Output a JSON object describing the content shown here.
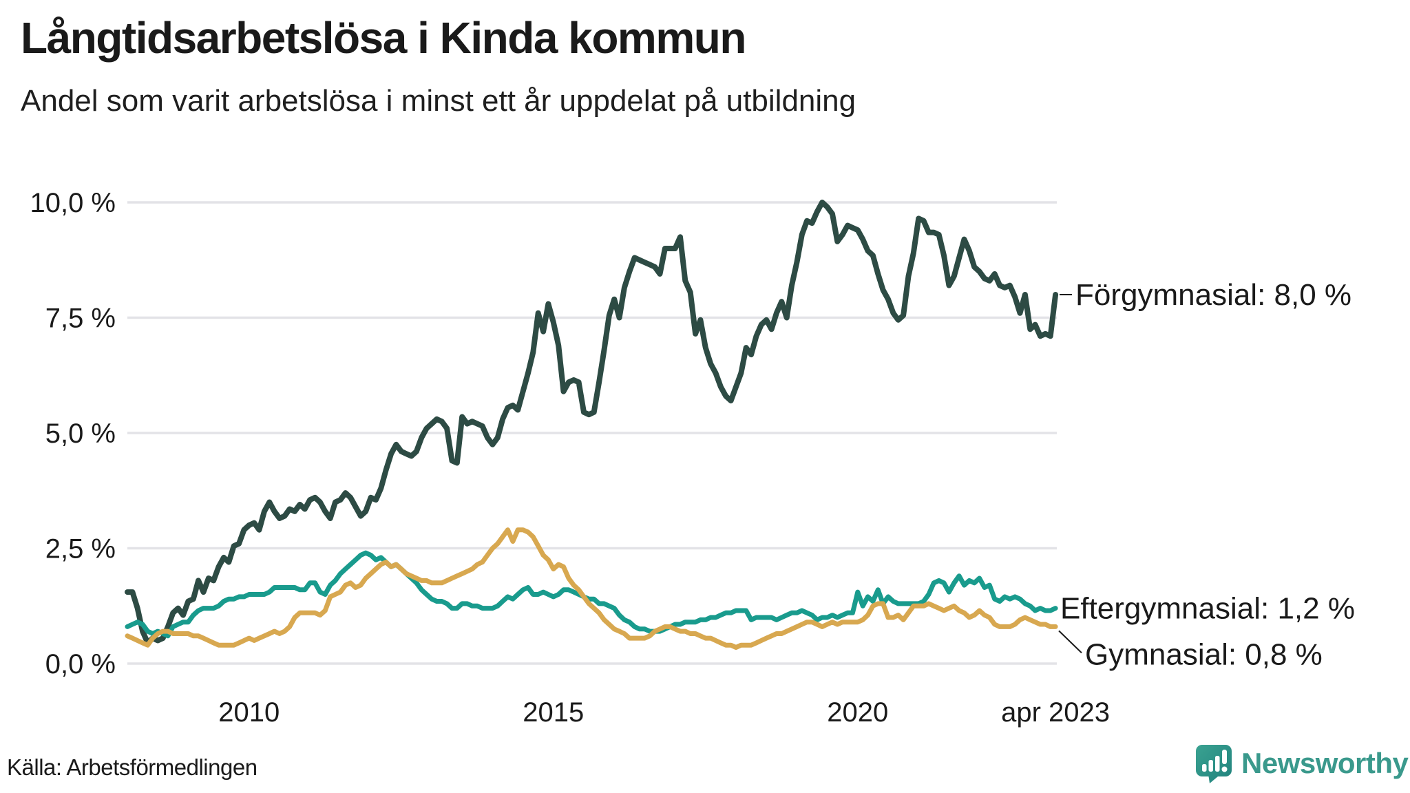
{
  "header": {
    "title": "Långtidsarbetslösa i Kinda kommun",
    "subtitle": "Andel som varit arbetslösa i minst ett år uppdelat på utbildning"
  },
  "footer": {
    "source": "Källa: Arbetsförmedlingen",
    "brand": "Newsworthy"
  },
  "logo": {
    "icon": "bar-chart-speech-bubble-icon",
    "color": "#2f9186"
  },
  "colors": {
    "grid": "#e3e3e7",
    "text": "#1a1a1a",
    "background": "#ffffff"
  },
  "chart_data": {
    "type": "line",
    "title": "Långtidsarbetslösa i Kinda kommun",
    "subtitle": "Andel som varit arbetslösa i minst ett år uppdelat på utbildning",
    "unit": "%",
    "x_frequency": "monthly",
    "x_range": [
      2008.0,
      2023.25
    ],
    "x_axis": {
      "ticks": [
        {
          "label": "2010",
          "year": 2010
        },
        {
          "label": "2015",
          "year": 2015
        },
        {
          "label": "2020",
          "year": 2020
        },
        {
          "label": "apr 2023",
          "year": 2023.25
        }
      ]
    },
    "y_axis": {
      "ylim": [
        0,
        10
      ],
      "grid": true,
      "ticks": [
        {
          "label": "10,0 %",
          "value": 10.0
        },
        {
          "label": "7,5 %",
          "value": 7.5
        },
        {
          "label": "5,0 %",
          "value": 5.0
        },
        {
          "label": "2,5 %",
          "value": 2.5
        },
        {
          "label": "0,0 %",
          "value": 0.0
        }
      ]
    },
    "legend_position": "end-of-line-labels-right",
    "series": [
      {
        "id": "forgymnasial",
        "name": "Förgymnasial",
        "end_label": "Förgymnasial: 8,0 %",
        "last_value": 8.0,
        "color": "#2d4b44",
        "values": [
          1.55,
          1.55,
          1.2,
          0.7,
          0.45,
          0.55,
          0.5,
          0.55,
          0.8,
          1.1,
          1.2,
          1.05,
          1.35,
          1.4,
          1.8,
          1.55,
          1.85,
          1.8,
          2.1,
          2.3,
          2.2,
          2.55,
          2.6,
          2.9,
          3.0,
          3.05,
          2.9,
          3.3,
          3.5,
          3.3,
          3.15,
          3.2,
          3.35,
          3.3,
          3.45,
          3.35,
          3.55,
          3.6,
          3.5,
          3.3,
          3.15,
          3.5,
          3.55,
          3.7,
          3.6,
          3.4,
          3.2,
          3.3,
          3.6,
          3.55,
          3.8,
          4.2,
          4.55,
          4.75,
          4.6,
          4.55,
          4.5,
          4.6,
          4.9,
          5.1,
          5.2,
          5.3,
          5.25,
          5.1,
          4.4,
          4.35,
          5.35,
          5.2,
          5.25,
          5.2,
          5.15,
          4.9,
          4.75,
          4.9,
          5.3,
          5.55,
          5.6,
          5.5,
          5.9,
          6.3,
          6.75,
          7.6,
          7.2,
          7.8,
          7.4,
          6.9,
          5.9,
          6.1,
          6.15,
          6.1,
          5.45,
          5.4,
          5.45,
          6.1,
          6.8,
          7.55,
          7.9,
          7.5,
          8.15,
          8.5,
          8.8,
          8.75,
          8.7,
          8.65,
          8.6,
          8.45,
          9.0,
          9.0,
          9.0,
          9.25,
          8.3,
          8.05,
          7.15,
          7.45,
          6.85,
          6.5,
          6.3,
          6.0,
          5.8,
          5.7,
          6.0,
          6.3,
          6.85,
          6.7,
          7.1,
          7.35,
          7.45,
          7.25,
          7.6,
          7.85,
          7.5,
          8.2,
          8.7,
          9.3,
          9.6,
          9.55,
          9.8,
          10.0,
          9.9,
          9.75,
          9.15,
          9.3,
          9.5,
          9.45,
          9.4,
          9.2,
          8.95,
          8.85,
          8.45,
          8.1,
          7.9,
          7.6,
          7.45,
          7.55,
          8.4,
          8.9,
          9.65,
          9.6,
          9.35,
          9.35,
          9.3,
          8.85,
          8.2,
          8.4,
          8.8,
          9.2,
          8.95,
          8.6,
          8.5,
          8.35,
          8.3,
          8.45,
          8.2,
          8.15,
          8.2,
          7.95,
          7.6,
          8.0,
          7.25,
          7.35,
          7.1,
          7.15,
          7.1,
          8.0
        ]
      },
      {
        "id": "eftergymnasial",
        "name": "Eftergymnasial",
        "end_label": "Eftergymnasial: 1,2 %",
        "last_value": 1.2,
        "color": "#199b8d",
        "values": [
          0.8,
          0.85,
          0.9,
          0.85,
          0.7,
          0.65,
          0.7,
          0.65,
          0.6,
          0.8,
          0.85,
          0.9,
          0.9,
          1.05,
          1.15,
          1.2,
          1.2,
          1.2,
          1.25,
          1.35,
          1.4,
          1.4,
          1.45,
          1.45,
          1.5,
          1.5,
          1.5,
          1.5,
          1.55,
          1.65,
          1.65,
          1.65,
          1.65,
          1.65,
          1.6,
          1.6,
          1.75,
          1.75,
          1.55,
          1.5,
          1.7,
          1.8,
          1.95,
          2.05,
          2.15,
          2.25,
          2.35,
          2.4,
          2.35,
          2.25,
          2.3,
          2.2,
          2.1,
          2.15,
          2.05,
          1.95,
          1.85,
          1.75,
          1.6,
          1.5,
          1.4,
          1.35,
          1.35,
          1.3,
          1.2,
          1.2,
          1.3,
          1.3,
          1.25,
          1.25,
          1.2,
          1.2,
          1.2,
          1.25,
          1.35,
          1.45,
          1.4,
          1.5,
          1.6,
          1.65,
          1.5,
          1.5,
          1.55,
          1.5,
          1.45,
          1.5,
          1.6,
          1.6,
          1.55,
          1.5,
          1.45,
          1.4,
          1.4,
          1.3,
          1.3,
          1.25,
          1.2,
          1.05,
          0.95,
          0.9,
          0.8,
          0.75,
          0.75,
          0.7,
          0.7,
          0.7,
          0.75,
          0.8,
          0.85,
          0.85,
          0.9,
          0.9,
          0.9,
          0.95,
          0.95,
          1.0,
          1.0,
          1.05,
          1.1,
          1.1,
          1.15,
          1.15,
          1.15,
          0.95,
          1.0,
          1.0,
          1.0,
          1.0,
          0.95,
          1.0,
          1.05,
          1.1,
          1.1,
          1.15,
          1.1,
          1.05,
          0.95,
          1.0,
          1.0,
          1.05,
          1.0,
          1.05,
          1.1,
          1.1,
          1.55,
          1.25,
          1.45,
          1.35,
          1.6,
          1.3,
          1.45,
          1.35,
          1.3,
          1.3,
          1.3,
          1.3,
          1.3,
          1.35,
          1.5,
          1.75,
          1.8,
          1.75,
          1.55,
          1.75,
          1.9,
          1.7,
          1.8,
          1.75,
          1.85,
          1.65,
          1.7,
          1.4,
          1.35,
          1.45,
          1.4,
          1.45,
          1.4,
          1.3,
          1.25,
          1.15,
          1.2,
          1.15,
          1.15,
          1.2
        ]
      },
      {
        "id": "gymnasial",
        "name": "Gymnasial",
        "end_label": "Gymnasial: 0,8 %",
        "last_value": 0.8,
        "color": "#d8a850",
        "values": [
          0.6,
          0.55,
          0.5,
          0.45,
          0.4,
          0.55,
          0.65,
          0.7,
          0.7,
          0.65,
          0.65,
          0.65,
          0.65,
          0.6,
          0.6,
          0.55,
          0.5,
          0.45,
          0.4,
          0.4,
          0.4,
          0.4,
          0.45,
          0.5,
          0.55,
          0.5,
          0.55,
          0.6,
          0.65,
          0.7,
          0.65,
          0.7,
          0.8,
          1.0,
          1.1,
          1.1,
          1.1,
          1.1,
          1.05,
          1.15,
          1.45,
          1.5,
          1.55,
          1.7,
          1.75,
          1.65,
          1.7,
          1.85,
          1.95,
          2.05,
          2.15,
          2.2,
          2.1,
          2.15,
          2.05,
          1.95,
          1.9,
          1.85,
          1.8,
          1.8,
          1.75,
          1.75,
          1.75,
          1.8,
          1.85,
          1.9,
          1.95,
          2.0,
          2.05,
          2.15,
          2.2,
          2.35,
          2.5,
          2.6,
          2.75,
          2.9,
          2.65,
          2.9,
          2.9,
          2.85,
          2.75,
          2.55,
          2.35,
          2.25,
          2.05,
          2.15,
          2.1,
          1.85,
          1.7,
          1.6,
          1.45,
          1.3,
          1.2,
          1.1,
          0.95,
          0.85,
          0.75,
          0.7,
          0.65,
          0.55,
          0.55,
          0.55,
          0.55,
          0.6,
          0.7,
          0.75,
          0.8,
          0.8,
          0.75,
          0.7,
          0.7,
          0.65,
          0.65,
          0.6,
          0.55,
          0.55,
          0.5,
          0.45,
          0.4,
          0.4,
          0.35,
          0.4,
          0.4,
          0.4,
          0.45,
          0.5,
          0.55,
          0.6,
          0.65,
          0.65,
          0.7,
          0.75,
          0.8,
          0.85,
          0.9,
          0.9,
          0.85,
          0.8,
          0.85,
          0.9,
          0.85,
          0.9,
          0.9,
          0.9,
          0.9,
          0.95,
          1.05,
          1.25,
          1.3,
          1.3,
          1.0,
          1.0,
          1.05,
          0.95,
          1.1,
          1.25,
          1.25,
          1.25,
          1.3,
          1.25,
          1.2,
          1.15,
          1.2,
          1.25,
          1.15,
          1.1,
          1.0,
          1.05,
          1.15,
          1.05,
          1.0,
          0.85,
          0.8,
          0.8,
          0.8,
          0.85,
          0.95,
          1.0,
          0.95,
          0.9,
          0.85,
          0.85,
          0.8,
          0.8
        ]
      }
    ]
  }
}
